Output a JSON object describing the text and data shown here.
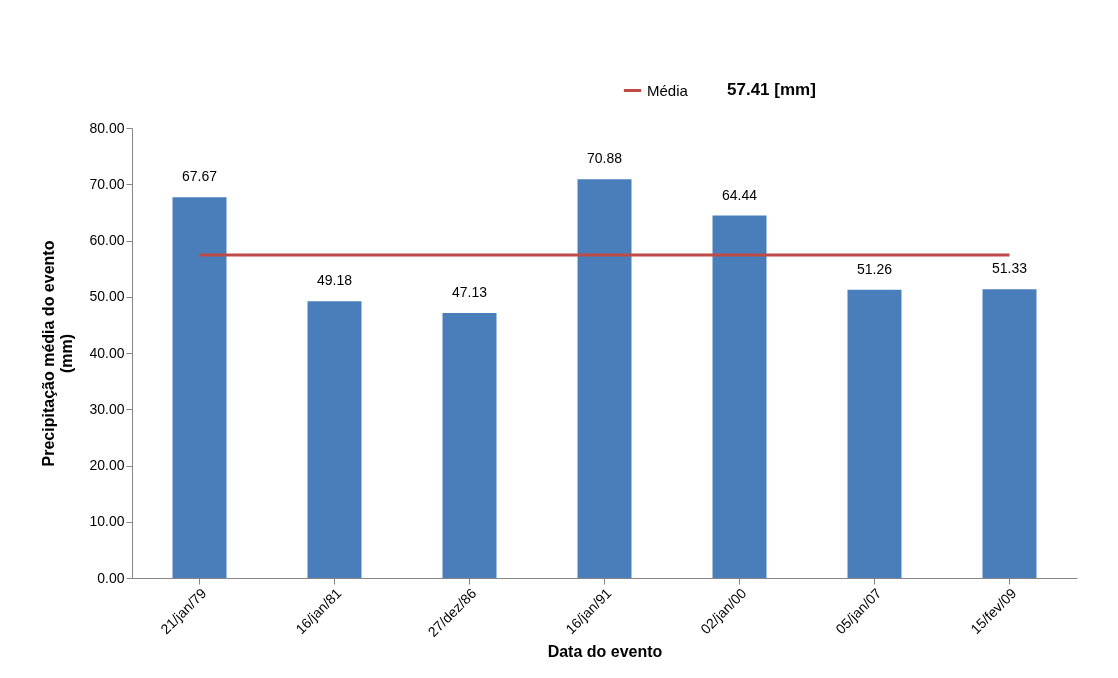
{
  "chart_data": {
    "type": "bar",
    "xlabel": "Data do evento",
    "ylabel": "Precipitação média do evento (mm)",
    "categories": [
      "21/jan/79",
      "16/jan/81",
      "27/dez/86",
      "16/jan/91",
      "02/jan/00",
      "05/jan/07",
      "15/fev/09"
    ],
    "values": [
      67.67,
      49.18,
      47.13,
      70.88,
      64.44,
      51.26,
      51.33
    ],
    "color": "#4a7ebb",
    "data_labels": true,
    "ylim": [
      0,
      80
    ],
    "yticks": [
      {
        "value": 0,
        "label": "0.00"
      },
      {
        "value": 10,
        "label": "10.00"
      },
      {
        "value": 20,
        "label": "20.00"
      },
      {
        "value": 30,
        "label": "30.00"
      },
      {
        "value": 40,
        "label": "40.00"
      },
      {
        "value": 50,
        "label": "50.00"
      },
      {
        "value": 60,
        "label": "60.00"
      },
      {
        "value": 70,
        "label": "70.00"
      },
      {
        "value": 80,
        "label": "80.00"
      }
    ],
    "ref_lines": [
      {
        "axis": "y",
        "value": 57.41,
        "label": "Média",
        "color": "#be4b48"
      }
    ],
    "annotations": [
      "57.41 [mm]"
    ],
    "legend": "top",
    "grid": false
  }
}
